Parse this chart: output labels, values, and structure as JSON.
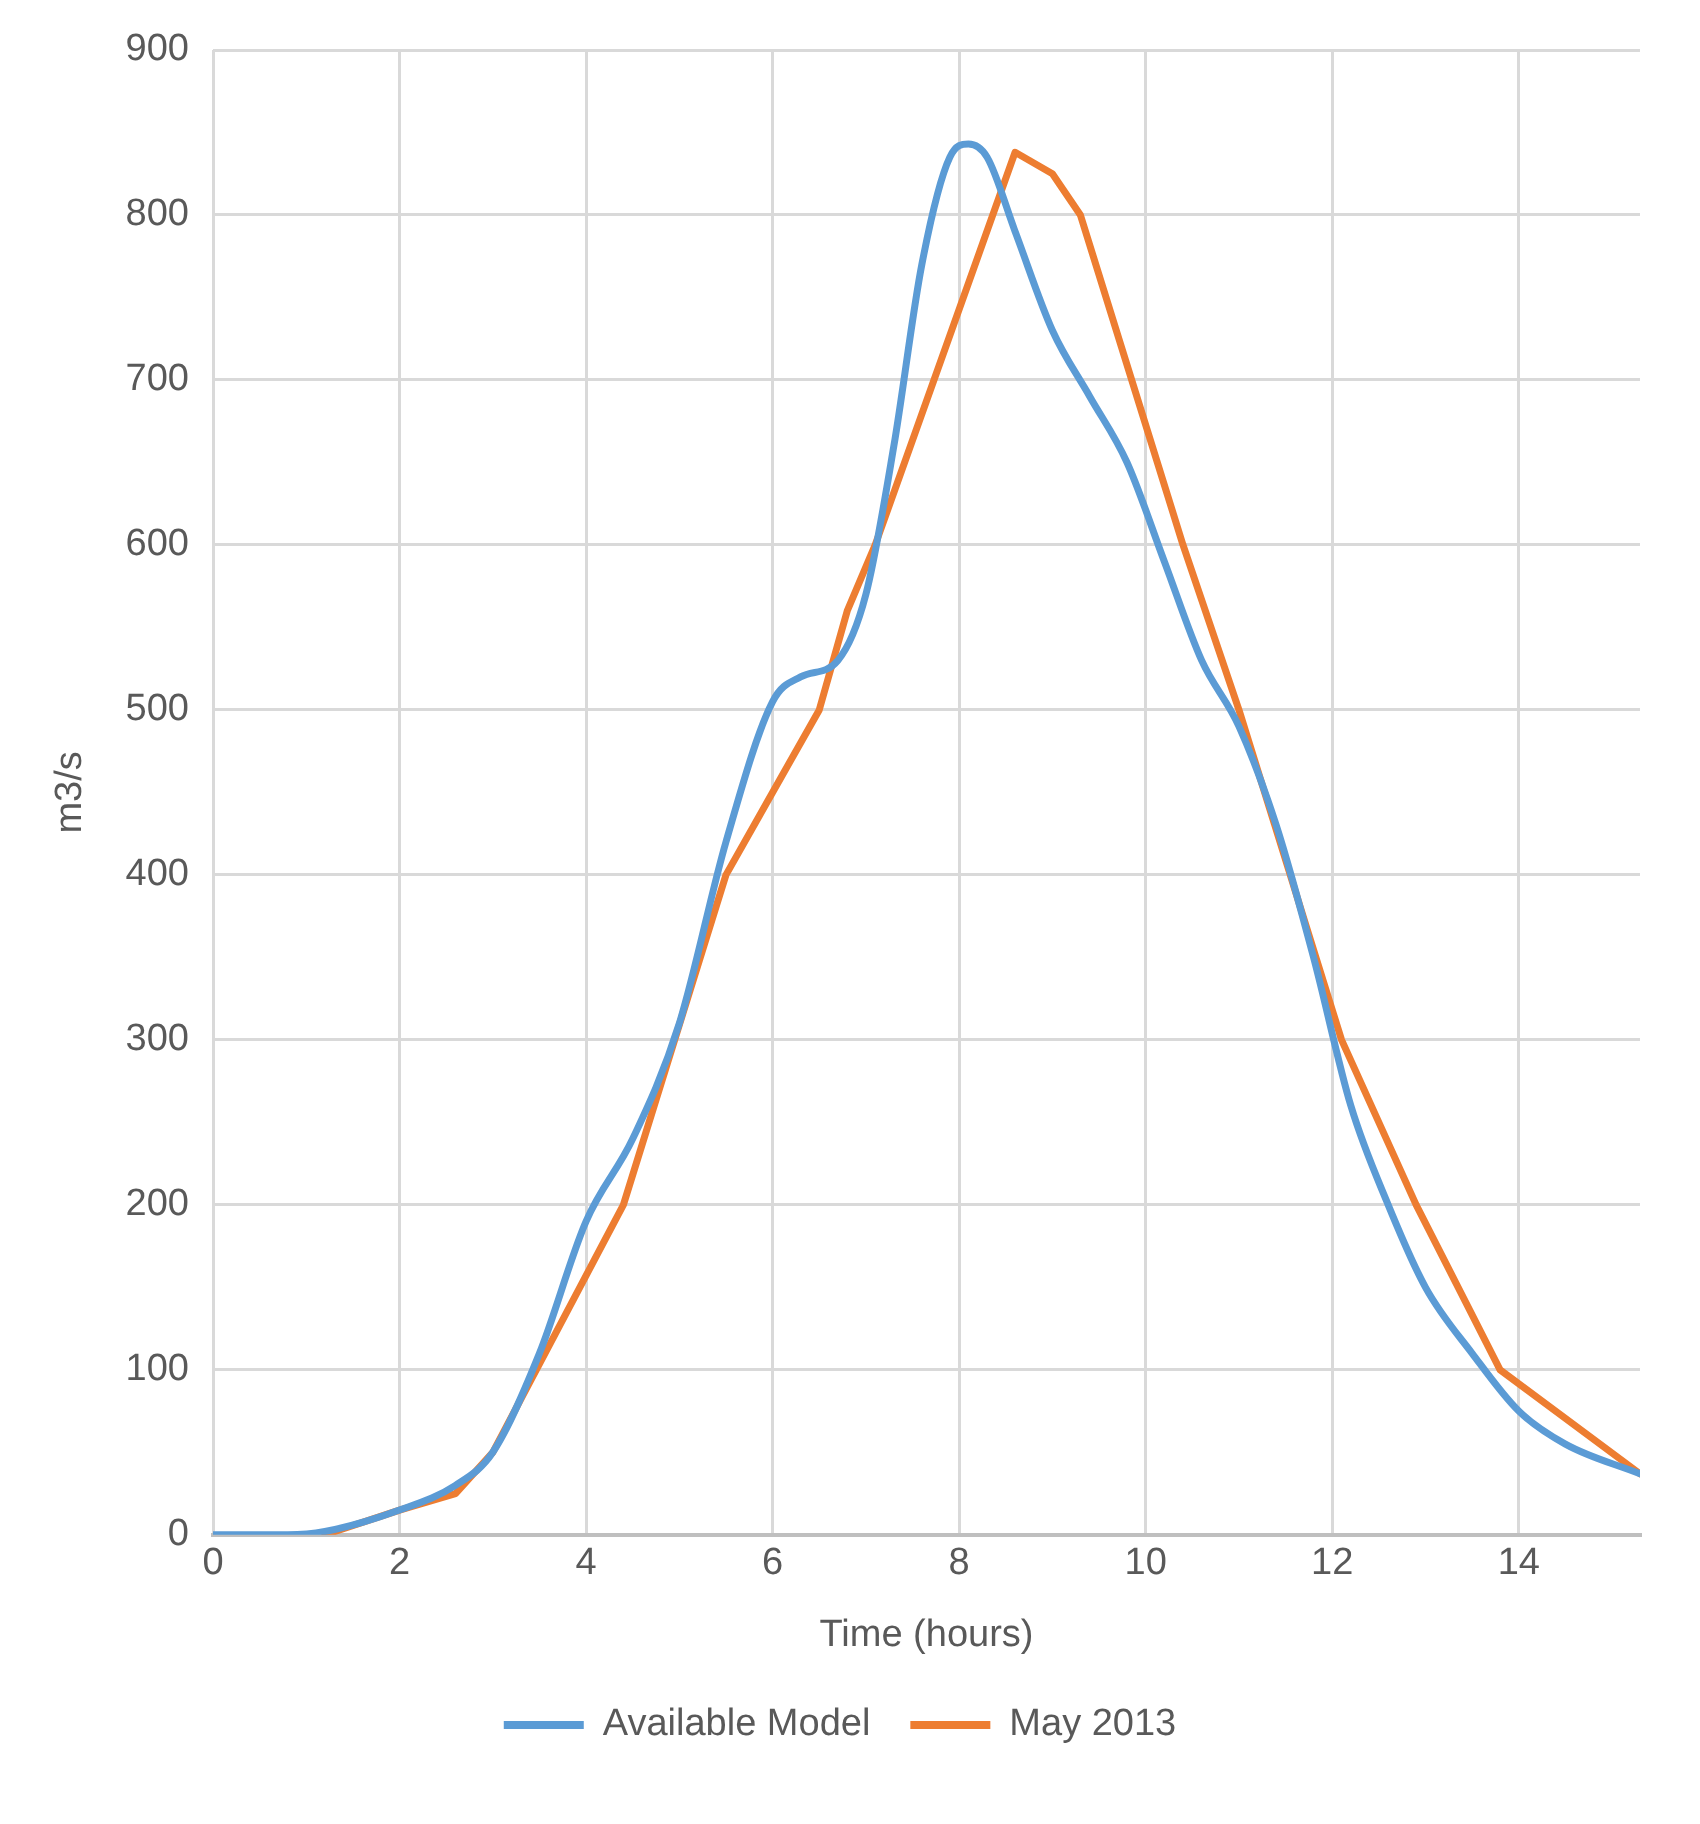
{
  "chart_data": {
    "type": "line",
    "xlabel": "Time (hours)",
    "ylabel": "m3/s",
    "xlim": [
      0,
      15.3
    ],
    "xticks": [
      0,
      2,
      4,
      6,
      8,
      10,
      12,
      14
    ],
    "ylim": [
      0,
      900
    ],
    "yticks": [
      0,
      100,
      200,
      300,
      400,
      500,
      600,
      700,
      800,
      900
    ],
    "grid": true,
    "legend": "bottom",
    "marker": "none",
    "line_style": "solid",
    "series": [
      {
        "name": "Available Model",
        "color": "#5b9bd5",
        "x": [
          0,
          0.8,
          1.2,
          2,
          2.6,
          3,
          3.5,
          4,
          4.5,
          5,
          5.5,
          6,
          6.3,
          6.7,
          7,
          7.3,
          7.6,
          7.9,
          8.1,
          8.3,
          8.6,
          9,
          9.4,
          9.8,
          10.2,
          10.6,
          11,
          11.4,
          11.8,
          12.2,
          12.6,
          13,
          13.5,
          14,
          14.5,
          15.3
        ],
        "values": [
          0,
          0,
          2,
          15,
          30,
          50,
          110,
          190,
          240,
          310,
          420,
          505,
          520,
          530,
          570,
          660,
          770,
          835,
          843,
          835,
          790,
          730,
          690,
          650,
          590,
          530,
          490,
          430,
          350,
          260,
          200,
          150,
          110,
          75,
          55,
          37
        ]
      },
      {
        "name": "May 2013",
        "color": "#ed7d31",
        "x": [
          1.2,
          2,
          2.6,
          3,
          4.4,
          5.5,
          6.5,
          6.8,
          7.1,
          8.6,
          9,
          9.3,
          10.4,
          11,
          12.1,
          12.9,
          13.8,
          15.3
        ],
        "values": [
          0,
          15,
          25,
          50,
          200,
          400,
          500,
          560,
          600,
          838,
          825,
          800,
          600,
          500,
          300,
          200,
          100,
          37
        ]
      }
    ]
  }
}
